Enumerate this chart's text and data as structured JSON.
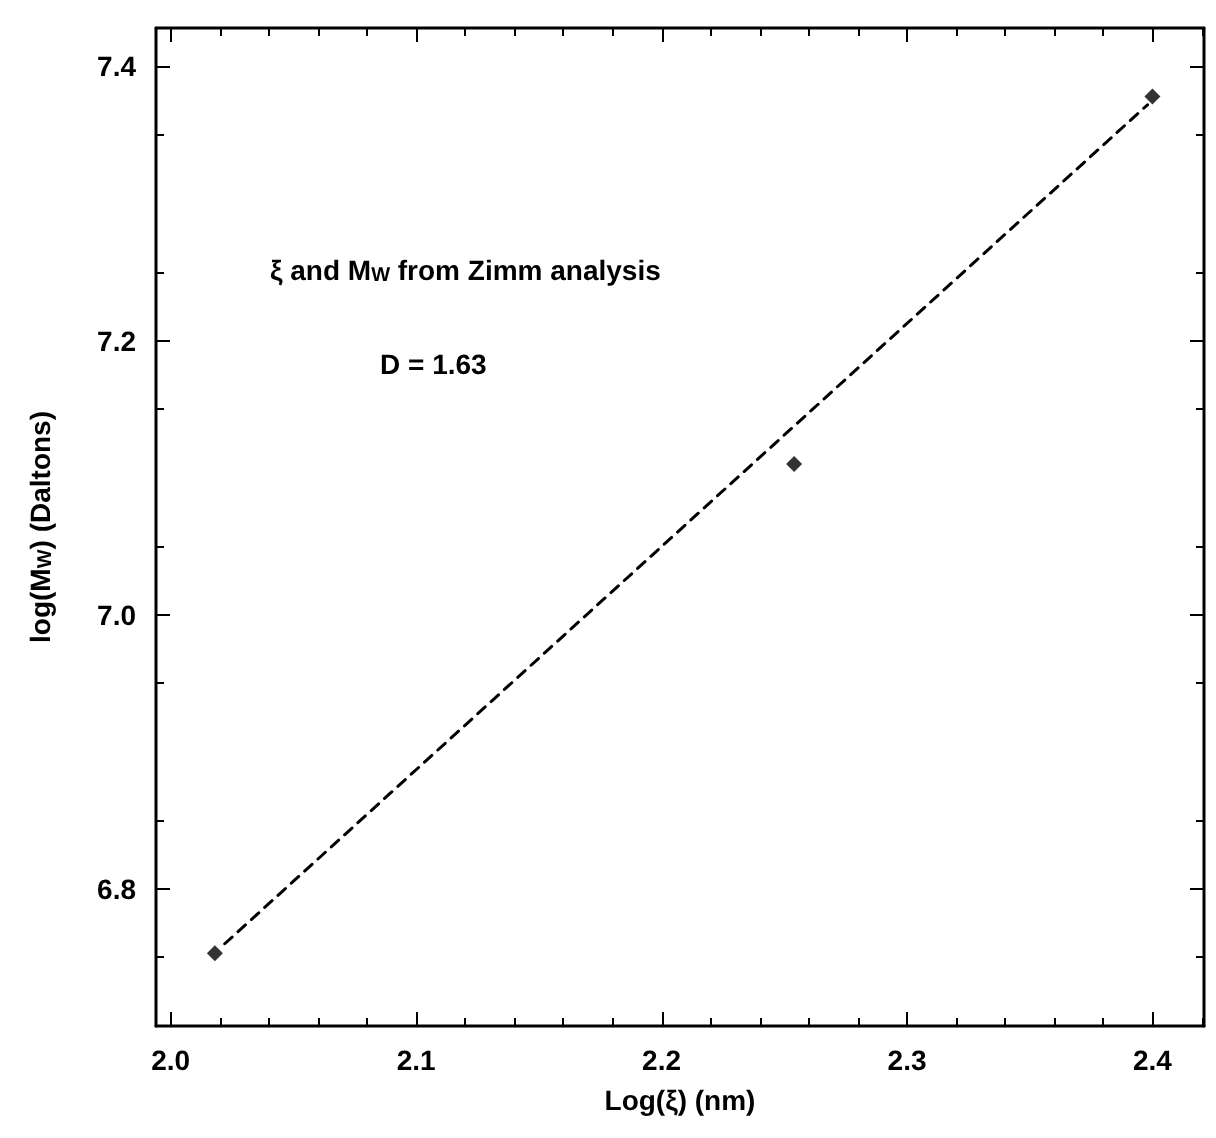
{
  "chart_data": {
    "type": "scatter",
    "xlabel": "Log(ξ) (nm)",
    "ylabel": "log(M$_{W}$) (Daltons)",
    "annotations": [
      "ξ and M$_{W}$ from Zimm analysis",
      "D = 1.63"
    ],
    "series": [
      {
        "color": "#000000",
        "x": [
          2.018,
          2.254,
          2.4
        ],
        "values": [
          6.753,
          7.11,
          7.378
        ]
      },
      {
        "type": "line",
        "marker": "none",
        "line_style": "dashed",
        "color": "#000000",
        "x": [
          2.022,
          2.398
        ],
        "values": [
          6.76,
          7.372
        ]
      }
    ],
    "marker": "diamond",
    "xlim": [
      1.994,
      2.421
    ],
    "xticks": [
      {
        "value": 2,
        "label": "2.0"
      },
      2.1,
      2.2,
      2.3,
      2.4
    ],
    "ylim": [
      6.7,
      7.428
    ],
    "yticks": [
      6.8,
      {
        "value": 7,
        "label": "7.0"
      },
      7.2,
      7.4
    ],
    "grid": false
  }
}
